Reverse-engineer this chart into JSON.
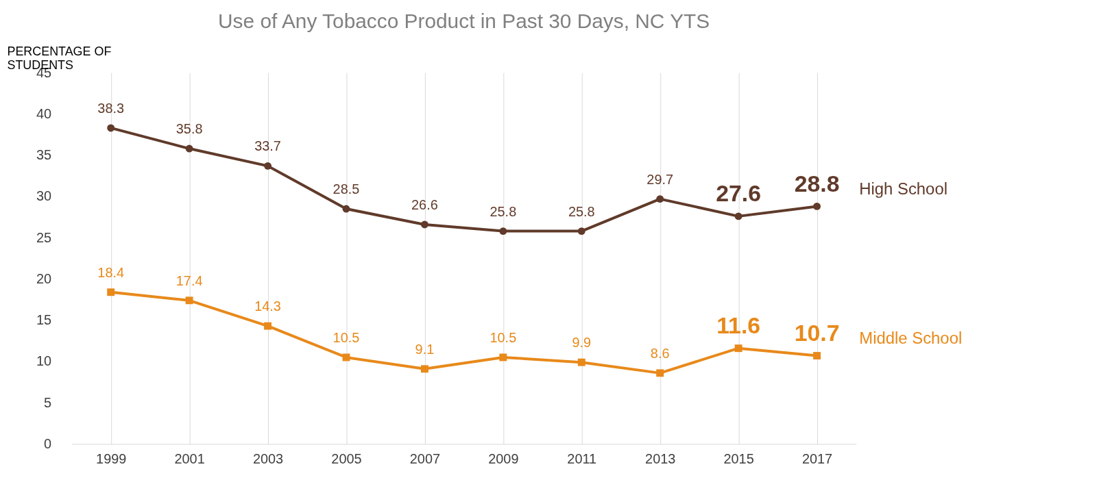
{
  "chart_data": {
    "type": "line",
    "title": "Use of Any Tobacco Product in Past 30 Days, NC YTS",
    "ylabel": "PERCENTAGE OF STUDENTS",
    "categories": [
      "1999",
      "2001",
      "2003",
      "2005",
      "2007",
      "2009",
      "2011",
      "2013",
      "2015",
      "2017"
    ],
    "series": [
      {
        "name": "High School",
        "color": "#603a2a",
        "marker": "circle",
        "values": [
          38.3,
          35.8,
          33.7,
          28.5,
          26.6,
          25.8,
          25.8,
          29.7,
          27.6,
          28.8
        ]
      },
      {
        "name": "Middle School",
        "color": "#e8891a",
        "marker": "square",
        "values": [
          18.4,
          17.4,
          14.3,
          10.5,
          9.1,
          10.5,
          9.9,
          8.6,
          11.6,
          10.7
        ]
      }
    ],
    "ylim": [
      0,
      45
    ],
    "yticks": [
      0,
      5,
      10,
      15,
      20,
      25,
      30,
      35,
      40,
      45
    ],
    "grid": "x",
    "data_labels": true,
    "legend": false,
    "line_style": "solid"
  }
}
